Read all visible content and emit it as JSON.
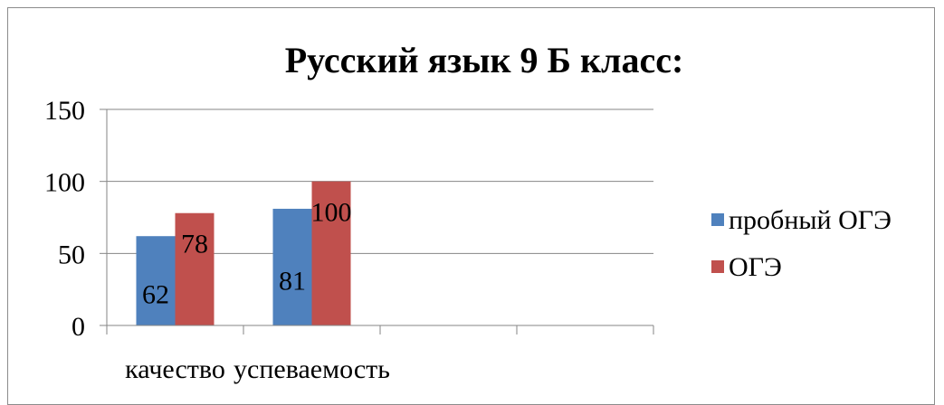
{
  "chart_data": {
    "type": "bar",
    "title": "Русский язык 9 Б класс:",
    "xlabel": "",
    "ylabel": "",
    "ylim": [
      0,
      150
    ],
    "yticks": [
      "0",
      "50",
      "100",
      "150"
    ],
    "ytick_values": [
      0,
      50,
      100,
      150
    ],
    "grid": true,
    "legend_position": "right",
    "categories": [
      "качество",
      "успеваемость",
      "",
      ""
    ],
    "series": [
      {
        "name": "пробный ОГЭ",
        "values": [
          62,
          81,
          null,
          null
        ],
        "color": "#4f81bd"
      },
      {
        "name": "ОГЭ",
        "values": [
          78,
          100,
          null,
          null
        ],
        "color": "#c0504d"
      }
    ],
    "data_labels": true
  }
}
